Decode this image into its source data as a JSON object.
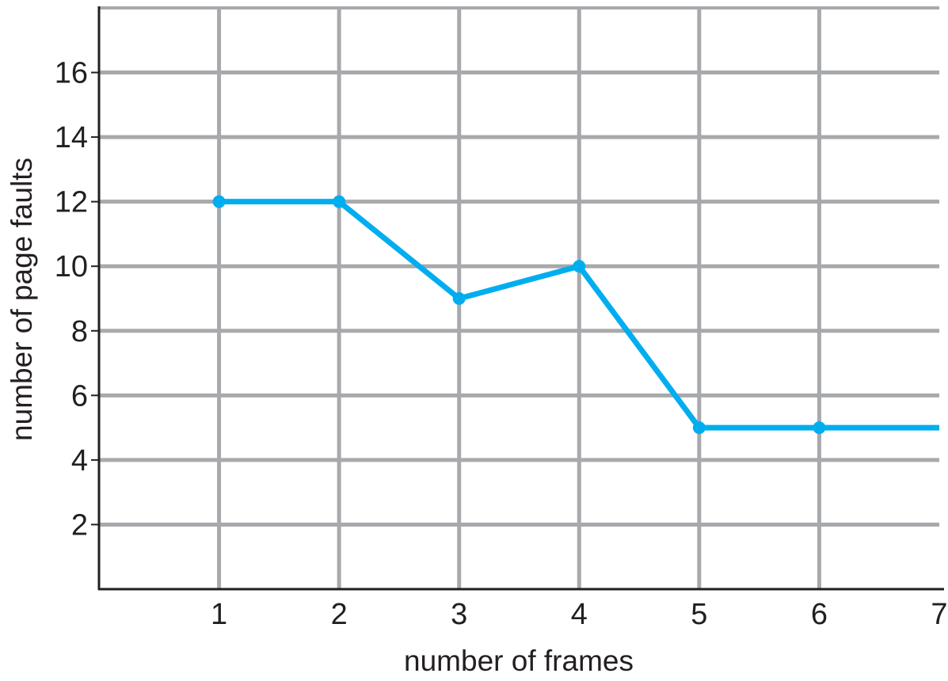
{
  "chart_data": {
    "type": "line",
    "title": "",
    "xlabel": "number of frames",
    "ylabel": "number of page faults",
    "x": [
      1,
      2,
      3,
      4,
      5,
      6,
      7
    ],
    "series": [
      {
        "values": [
          12,
          12,
          9,
          10,
          5,
          5,
          5
        ],
        "markers_at": [
          1,
          2,
          3,
          4,
          5,
          6
        ]
      }
    ],
    "xlim": [
      0,
      7
    ],
    "ylim": [
      0,
      18
    ],
    "x_ticks": [
      1,
      2,
      3,
      4,
      5,
      6,
      7
    ],
    "y_ticks": [
      2,
      4,
      6,
      8,
      10,
      12,
      14,
      16
    ],
    "grid": true,
    "legend": "none"
  },
  "colors": {
    "series": "#00aeef",
    "grid": "#a7a9ac",
    "axis": "#231f20"
  }
}
